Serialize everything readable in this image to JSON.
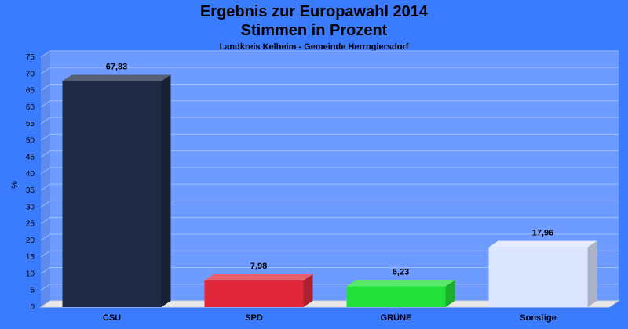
{
  "title_line1": "Ergebnis zur Europawahl 2014",
  "title_line2": "Stimmen in Prozent",
  "subtitle": "Landkreis Kelheim - Gemeinde Herrngiersdorf",
  "chart_data": {
    "type": "bar",
    "title": "Ergebnis zur Europawahl 2014 Stimmen in Prozent",
    "subtitle": "Landkreis Kelheim - Gemeinde Herrngiersdorf",
    "xlabel": "",
    "ylabel": "%",
    "categories": [
      "CSU",
      "SPD",
      "GRÜNE",
      "Sonstige"
    ],
    "values": [
      67.83,
      7.98,
      6.23,
      17.96
    ],
    "value_labels": [
      "67,83",
      "7,98",
      "6,23",
      "17,96"
    ],
    "colors": [
      "#1e2a44",
      "#e0283a",
      "#22e03a",
      "#dde6ff"
    ],
    "ylim": [
      0,
      75
    ],
    "yticks": [
      0,
      5,
      10,
      15,
      20,
      25,
      30,
      35,
      40,
      45,
      50,
      55,
      60,
      65,
      70,
      75
    ],
    "grid": true,
    "legend": "none",
    "style": "3d"
  },
  "colors": {
    "background": "#3b7cff",
    "plot_area": "#6e9bff",
    "gridline": "#9dbcff",
    "floor": "#e8e8e8"
  }
}
